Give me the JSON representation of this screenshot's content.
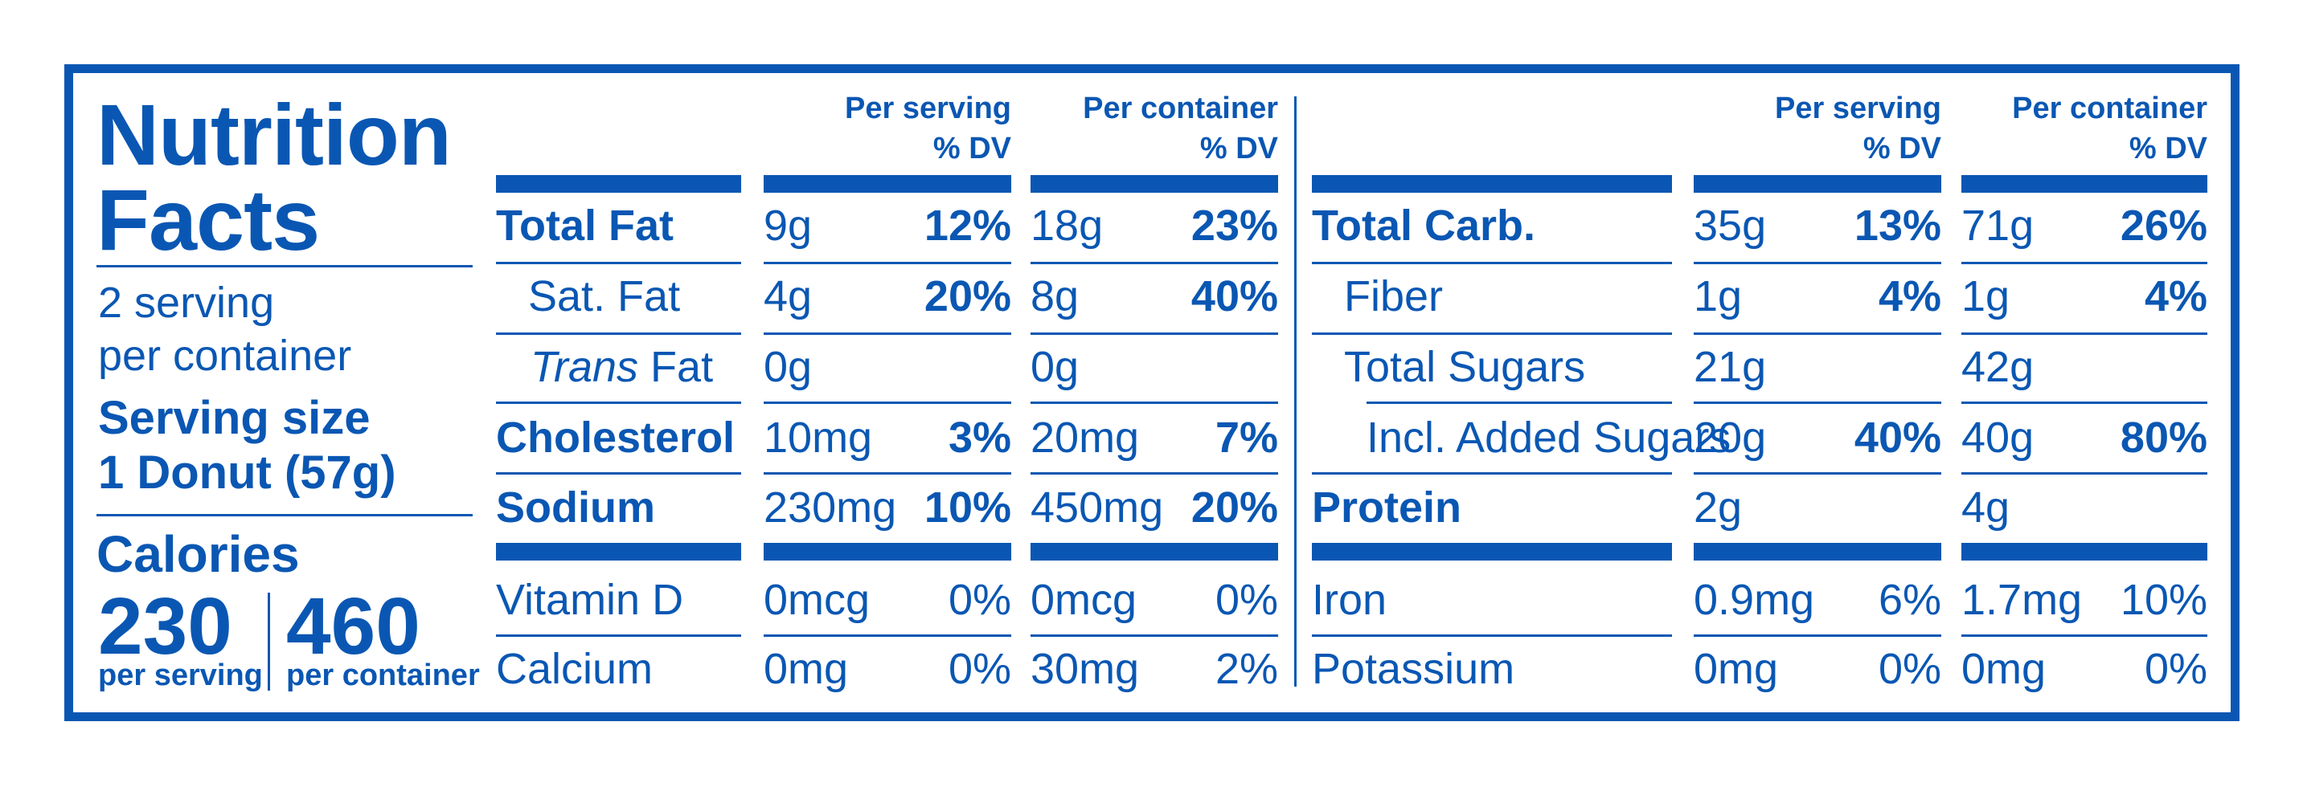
{
  "title_line1": "Nutrition",
  "title_line2": "Facts",
  "servings_line1": "2 serving",
  "servings_line2": "per container",
  "serving_size_label": "Serving size",
  "serving_size_value": "1 Donut (57g)",
  "calories_label": "Calories",
  "calories_per_serving": "230",
  "calories_per_container": "460",
  "per_serving_caption": "per serving",
  "per_container_caption": "per container",
  "col_headers": {
    "per_serving_l1": "Per serving",
    "per_container_l1": "Per container",
    "dv": "% DV"
  },
  "left_rows": [
    {
      "name": "Total Fat",
      "serv_amt": "9g",
      "serv_dv": "12%",
      "cont_amt": "18g",
      "cont_dv": "23%"
    },
    {
      "name": "Sat. Fat",
      "serv_amt": "4g",
      "serv_dv": "20%",
      "cont_amt": "8g",
      "cont_dv": "40%"
    },
    {
      "name_italic": "Trans",
      "name": "Fat",
      "serv_amt": "0g",
      "serv_dv": "",
      "cont_amt": "0g",
      "cont_dv": ""
    },
    {
      "name": "Cholesterol",
      "serv_amt": "10mg",
      "serv_dv": "3%",
      "cont_amt": "20mg",
      "cont_dv": "7%"
    },
    {
      "name": "Sodium",
      "serv_amt": "230mg",
      "serv_dv": "10%",
      "cont_amt": "450mg",
      "cont_dv": "20%"
    }
  ],
  "left_minerals": [
    {
      "name": "Vitamin D",
      "serv_amt": "0mcg",
      "serv_dv": "0%",
      "cont_amt": "0mcg",
      "cont_dv": "0%"
    },
    {
      "name": "Calcium",
      "serv_amt": "0mg",
      "serv_dv": "0%",
      "cont_amt": "30mg",
      "cont_dv": "2%"
    }
  ],
  "right_rows": [
    {
      "name": "Total Carb.",
      "serv_amt": "35g",
      "serv_dv": "13%",
      "cont_amt": "71g",
      "cont_dv": "26%"
    },
    {
      "name": "Fiber",
      "serv_amt": "1g",
      "serv_dv": "4%",
      "cont_amt": "1g",
      "cont_dv": "4%"
    },
    {
      "name": "Total Sugars",
      "serv_amt": "21g",
      "serv_dv": "",
      "cont_amt": "42g",
      "cont_dv": ""
    },
    {
      "name": "Incl. Added Sugars",
      "serv_amt": "20g",
      "serv_dv": "40%",
      "cont_amt": "40g",
      "cont_dv": "80%"
    },
    {
      "name": "Protein",
      "serv_amt": "2g",
      "serv_dv": "",
      "cont_amt": "4g",
      "cont_dv": ""
    }
  ],
  "right_minerals": [
    {
      "name": "Iron",
      "serv_amt": "0.9mg",
      "serv_dv": "6%",
      "cont_amt": "1.7mg",
      "cont_dv": "10%"
    },
    {
      "name": "Potassium",
      "serv_amt": "0mg",
      "serv_dv": "0%",
      "cont_amt": "0mg",
      "cont_dv": "0%"
    }
  ],
  "colors": {
    "label_blue": "#0a57b3",
    "background": "#ffffff"
  }
}
